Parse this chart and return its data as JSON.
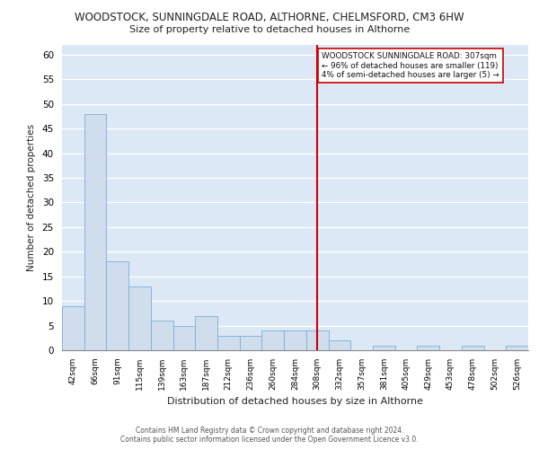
{
  "title": "WOODSTOCK, SUNNINGDALE ROAD, ALTHORNE, CHELMSFORD, CM3 6HW",
  "subtitle": "Size of property relative to detached houses in Althorne",
  "xlabel": "Distribution of detached houses by size in Althorne",
  "ylabel": "Number of detached properties",
  "categories": [
    "42sqm",
    "66sqm",
    "91sqm",
    "115sqm",
    "139sqm",
    "163sqm",
    "187sqm",
    "212sqm",
    "236sqm",
    "260sqm",
    "284sqm",
    "308sqm",
    "332sqm",
    "357sqm",
    "381sqm",
    "405sqm",
    "429sqm",
    "453sqm",
    "478sqm",
    "502sqm",
    "526sqm"
  ],
  "values": [
    9,
    48,
    18,
    13,
    6,
    5,
    7,
    3,
    3,
    4,
    4,
    4,
    2,
    0,
    1,
    0,
    1,
    0,
    1,
    0,
    1
  ],
  "bar_color": "#cfdded",
  "bar_edge_color": "#7bafd4",
  "vline_index": 11,
  "vline_color": "#cc0000",
  "annotation_lines": [
    "WOODSTOCK SUNNINGDALE ROAD: 307sqm",
    "← 96% of detached houses are smaller (119)",
    "4% of semi-detached houses are larger (5) →"
  ],
  "annotation_box_edgecolor": "#cc0000",
  "ylim": [
    0,
    62
  ],
  "yticks": [
    0,
    5,
    10,
    15,
    20,
    25,
    30,
    35,
    40,
    45,
    50,
    55,
    60
  ],
  "background_color": "#dce8f5",
  "grid_color": "#ffffff",
  "footer_line1": "Contains HM Land Registry data © Crown copyright and database right 2024.",
  "footer_line2": "Contains public sector information licensed under the Open Government Licence v3.0."
}
